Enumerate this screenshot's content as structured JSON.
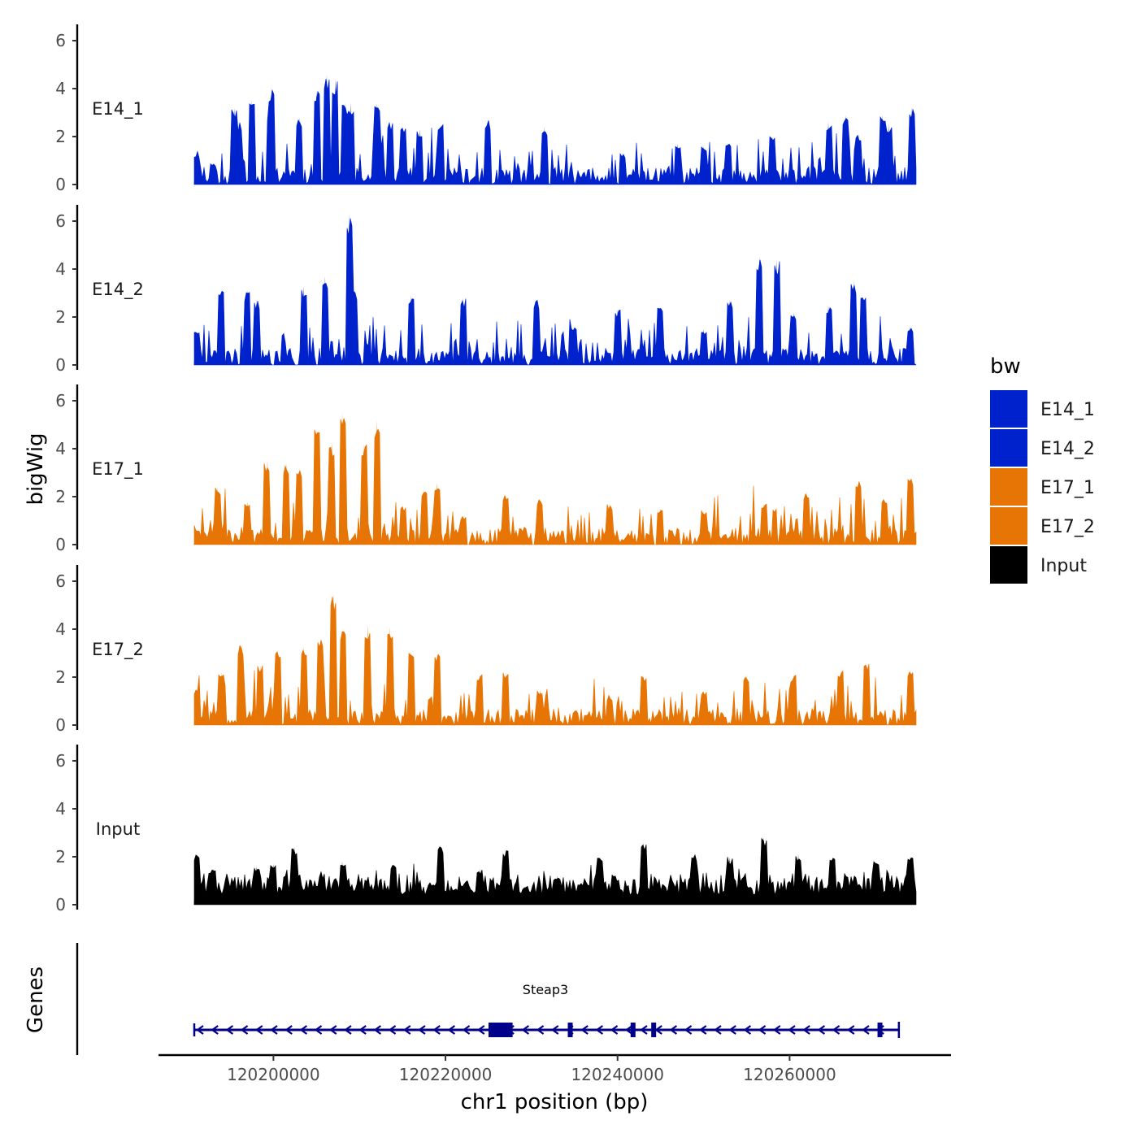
{
  "chart_data": {
    "type": "area",
    "chromosome": "chr1",
    "x_range": [
      120190800,
      120274700
    ],
    "ylim": [
      0,
      6.5
    ],
    "y_ticks": [
      0,
      2,
      4,
      6
    ],
    "ylabel": "bigWig",
    "xlabel": "chr1 position (bp)",
    "x_ticks": [
      120200000,
      120220000,
      120240000,
      120260000
    ],
    "x_tick_labels": [
      "120200000",
      "120220000",
      "120240000",
      "120260000"
    ],
    "tracks_label": "Genes",
    "legend": {
      "title": "bw",
      "items": [
        {
          "label": "E14_1",
          "color": "#0022CC"
        },
        {
          "label": "E14_2",
          "color": "#0022CC"
        },
        {
          "label": "E17_1",
          "color": "#E67505"
        },
        {
          "label": "E17_2",
          "color": "#E67505"
        },
        {
          "label": "Input",
          "color": "#000000"
        }
      ]
    },
    "series": [
      {
        "name": "E14_1",
        "color": "#0022CC",
        "peaks": [
          [
            120191000,
            1.2
          ],
          [
            120193000,
            0.9
          ],
          [
            120195500,
            3.2
          ],
          [
            120196000,
            2.6
          ],
          [
            120197500,
            3.5
          ],
          [
            120199500,
            2.9
          ],
          [
            120199800,
            4.0
          ],
          [
            120203000,
            2.8
          ],
          [
            120205000,
            3.9
          ],
          [
            120206200,
            4.6
          ],
          [
            120207200,
            4.4
          ],
          [
            120208300,
            3.4
          ],
          [
            120209000,
            3.4
          ],
          [
            120212000,
            3.4
          ],
          [
            120213500,
            2.6
          ],
          [
            120215000,
            2.4
          ],
          [
            120217000,
            2.3
          ],
          [
            120219500,
            2.5
          ],
          [
            120225000,
            2.7
          ],
          [
            120231500,
            2.4
          ],
          [
            120240500,
            1.3
          ],
          [
            120247000,
            1.7
          ],
          [
            120250000,
            1.6
          ],
          [
            120252800,
            1.7
          ],
          [
            120258000,
            2.0
          ],
          [
            120264500,
            2.6
          ],
          [
            120266500,
            2.9
          ],
          [
            120268000,
            2.1
          ],
          [
            120270800,
            2.9
          ],
          [
            120271500,
            2.5
          ],
          [
            120274200,
            3.2
          ]
        ]
      },
      {
        "name": "E14_2",
        "color": "#0022CC",
        "peaks": [
          [
            120191000,
            1.4
          ],
          [
            120194000,
            3.1
          ],
          [
            120197000,
            3.1
          ],
          [
            120198000,
            2.7
          ],
          [
            120203500,
            3.3
          ],
          [
            120206000,
            3.7
          ],
          [
            120208800,
            6.3
          ],
          [
            120209500,
            3.1
          ],
          [
            120216000,
            2.9
          ],
          [
            120222000,
            2.8
          ],
          [
            120230500,
            2.7
          ],
          [
            120235000,
            1.6
          ],
          [
            120240000,
            2.3
          ],
          [
            120245000,
            2.4
          ],
          [
            120250000,
            1.5
          ],
          [
            120253000,
            2.7
          ],
          [
            120256500,
            4.5
          ],
          [
            120258500,
            4.4
          ],
          [
            120260500,
            2.2
          ],
          [
            120264500,
            2.5
          ],
          [
            120267500,
            3.5
          ],
          [
            120268500,
            2.8
          ],
          [
            120274000,
            1.6
          ]
        ]
      },
      {
        "name": "E17_1",
        "color": "#E67505",
        "peaks": [
          [
            120191000,
            0.6
          ],
          [
            120193500,
            2.4
          ],
          [
            120197000,
            1.8
          ],
          [
            120199300,
            3.5
          ],
          [
            120201500,
            3.4
          ],
          [
            120203000,
            3.2
          ],
          [
            120205000,
            4.8
          ],
          [
            120206800,
            4.3
          ],
          [
            120208000,
            5.5
          ],
          [
            120210500,
            4.2
          ],
          [
            120212000,
            5.2
          ],
          [
            120215000,
            1.6
          ],
          [
            120217500,
            2.3
          ],
          [
            120219000,
            2.6
          ],
          [
            120222000,
            1.2
          ],
          [
            120227000,
            2.1
          ],
          [
            120231000,
            1.9
          ],
          [
            120239000,
            1.7
          ],
          [
            120245000,
            1.5
          ],
          [
            120250000,
            1.4
          ],
          [
            120257000,
            1.7
          ],
          [
            120262000,
            2.2
          ],
          [
            120268000,
            2.7
          ],
          [
            120271000,
            1.9
          ],
          [
            120274000,
            2.8
          ]
        ]
      },
      {
        "name": "E17_2",
        "color": "#E67505",
        "peaks": [
          [
            120191000,
            1.5
          ],
          [
            120194000,
            2.2
          ],
          [
            120196200,
            3.4
          ],
          [
            120198500,
            2.5
          ],
          [
            120200500,
            3.1
          ],
          [
            120203500,
            3.3
          ],
          [
            120205500,
            3.6
          ],
          [
            120207000,
            5.5
          ],
          [
            120208000,
            3.9
          ],
          [
            120211000,
            4.2
          ],
          [
            120213500,
            4.1
          ],
          [
            120216000,
            3.1
          ],
          [
            120219000,
            3.0
          ],
          [
            120224000,
            2.1
          ],
          [
            120227000,
            2.2
          ],
          [
            120231000,
            1.5
          ],
          [
            120239000,
            1.2
          ],
          [
            120243000,
            2.1
          ],
          [
            120250000,
            1.4
          ],
          [
            120255000,
            2.1
          ],
          [
            120260500,
            2.1
          ],
          [
            120266000,
            2.3
          ],
          [
            120269000,
            2.6
          ],
          [
            120274000,
            2.3
          ]
        ]
      },
      {
        "name": "Input",
        "color": "#000000",
        "peaks": [
          [
            120191000,
            2.1
          ],
          [
            120193000,
            1.5
          ],
          [
            120198000,
            1.6
          ],
          [
            120200000,
            1.7
          ],
          [
            120202500,
            2.4
          ],
          [
            120208000,
            1.8
          ],
          [
            120214000,
            1.7
          ],
          [
            120219400,
            2.5
          ],
          [
            120224000,
            1.5
          ],
          [
            120227000,
            2.3
          ],
          [
            120233000,
            1.2
          ],
          [
            120238000,
            2.0
          ],
          [
            120243000,
            2.6
          ],
          [
            120249000,
            2.1
          ],
          [
            120253000,
            2.0
          ],
          [
            120257000,
            2.8
          ],
          [
            120261000,
            2.1
          ],
          [
            120265000,
            2.0
          ],
          [
            120270000,
            1.8
          ],
          [
            120274000,
            2.0
          ]
        ]
      }
    ],
    "gene": {
      "name": "Steap3",
      "strand": "-",
      "start": 120190800,
      "end": 120272700,
      "color": "#00008B",
      "thick_blocks": [
        [
          120225000,
          120227800
        ]
      ],
      "exons": [
        120234500,
        120241800,
        120244200,
        120270500
      ]
    }
  }
}
